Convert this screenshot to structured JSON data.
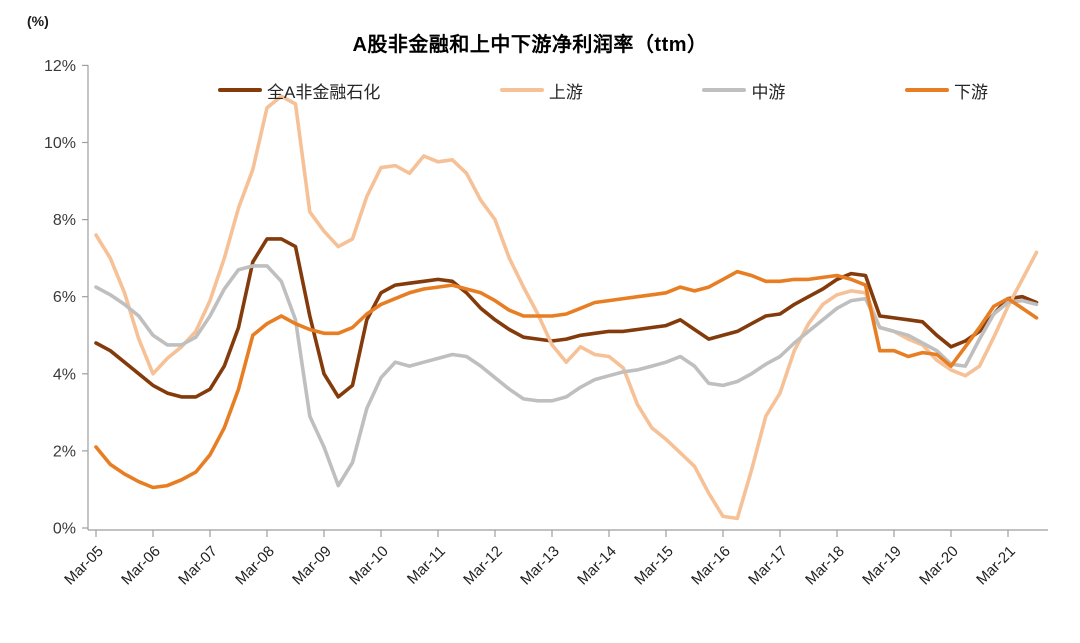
{
  "chart": {
    "title": "A股非金融和上中下游净利润率（ttm）",
    "unit_label": "(%)"
  },
  "chart_data": {
    "type": "line",
    "frequency": "quarterly",
    "x_start": "Mar-05",
    "x_end": "Sep-21",
    "x_tick_labels": [
      "Mar-05",
      "Mar-06",
      "Mar-07",
      "Mar-08",
      "Mar-09",
      "Mar-10",
      "Mar-11",
      "Mar-12",
      "Mar-13",
      "Mar-14",
      "Mar-15",
      "Mar-16",
      "Mar-17",
      "Mar-18",
      "Mar-19",
      "Mar-20",
      "Mar-21"
    ],
    "y_ticks": [
      0,
      2,
      4,
      6,
      8,
      10,
      12
    ],
    "ylim": [
      0,
      12
    ],
    "y_tick_suffix": "%",
    "grid": false,
    "legend_position": "top",
    "series": [
      {
        "name": "全A非金融石化",
        "color": "#843B0C",
        "values": [
          4.8,
          4.6,
          4.3,
          4.0,
          3.7,
          3.5,
          3.4,
          3.4,
          3.6,
          4.2,
          5.2,
          6.9,
          7.5,
          7.5,
          7.3,
          5.5,
          4.0,
          3.4,
          3.7,
          5.4,
          6.1,
          6.3,
          6.35,
          6.4,
          6.45,
          6.4,
          6.1,
          5.7,
          5.4,
          5.15,
          4.95,
          4.9,
          4.85,
          4.9,
          5.0,
          5.05,
          5.1,
          5.1,
          5.15,
          5.2,
          5.25,
          5.4,
          5.15,
          4.9,
          5.0,
          5.1,
          5.3,
          5.5,
          5.55,
          5.8,
          6.0,
          6.2,
          6.45,
          6.6,
          6.55,
          5.5,
          5.45,
          5.4,
          5.35,
          5.0,
          4.7,
          4.85,
          5.1,
          5.55,
          5.95,
          6.0,
          5.85
        ]
      },
      {
        "name": "上游",
        "color": "#F6C196",
        "values": [
          7.6,
          7.0,
          6.1,
          4.9,
          4.0,
          4.4,
          4.7,
          5.1,
          5.9,
          7.0,
          8.3,
          9.3,
          10.9,
          11.2,
          11.0,
          8.2,
          7.7,
          7.3,
          7.5,
          8.6,
          9.35,
          9.4,
          9.2,
          9.65,
          9.5,
          9.55,
          9.2,
          8.5,
          8.0,
          7.0,
          6.25,
          5.55,
          4.75,
          4.3,
          4.7,
          4.5,
          4.45,
          4.15,
          3.2,
          2.6,
          2.3,
          1.95,
          1.6,
          0.9,
          0.3,
          0.25,
          1.5,
          2.9,
          3.5,
          4.6,
          5.3,
          5.8,
          6.05,
          6.15,
          6.1,
          5.2,
          5.1,
          4.9,
          4.75,
          4.35,
          4.1,
          3.95,
          4.2,
          4.95,
          5.75,
          6.45,
          7.15
        ]
      },
      {
        "name": "中游",
        "color": "#BFBFBF",
        "values": [
          6.25,
          6.05,
          5.8,
          5.5,
          5.0,
          4.75,
          4.75,
          4.95,
          5.5,
          6.2,
          6.7,
          6.8,
          6.8,
          6.4,
          5.4,
          2.9,
          2.1,
          1.1,
          1.7,
          3.1,
          3.9,
          4.3,
          4.2,
          4.3,
          4.4,
          4.5,
          4.45,
          4.2,
          3.9,
          3.6,
          3.35,
          3.3,
          3.3,
          3.4,
          3.65,
          3.85,
          3.95,
          4.05,
          4.1,
          4.2,
          4.3,
          4.45,
          4.2,
          3.75,
          3.7,
          3.8,
          4.0,
          4.25,
          4.45,
          4.8,
          5.1,
          5.4,
          5.7,
          5.9,
          5.95,
          5.2,
          5.1,
          5.0,
          4.8,
          4.6,
          4.25,
          4.2,
          4.9,
          5.55,
          5.85,
          5.9,
          5.8
        ]
      },
      {
        "name": "下游",
        "color": "#E87E23",
        "values": [
          2.1,
          1.65,
          1.4,
          1.2,
          1.05,
          1.1,
          1.25,
          1.45,
          1.9,
          2.6,
          3.6,
          5.0,
          5.3,
          5.5,
          5.3,
          5.15,
          5.05,
          5.05,
          5.2,
          5.55,
          5.8,
          5.95,
          6.1,
          6.2,
          6.25,
          6.3,
          6.2,
          6.1,
          5.9,
          5.65,
          5.5,
          5.5,
          5.5,
          5.55,
          5.7,
          5.85,
          5.9,
          5.95,
          6.0,
          6.05,
          6.1,
          6.25,
          6.15,
          6.25,
          6.45,
          6.65,
          6.55,
          6.4,
          6.4,
          6.45,
          6.45,
          6.5,
          6.55,
          6.45,
          6.3,
          4.6,
          4.6,
          4.45,
          4.55,
          4.5,
          4.2,
          4.7,
          5.2,
          5.75,
          5.95,
          5.7,
          5.45
        ]
      }
    ]
  }
}
